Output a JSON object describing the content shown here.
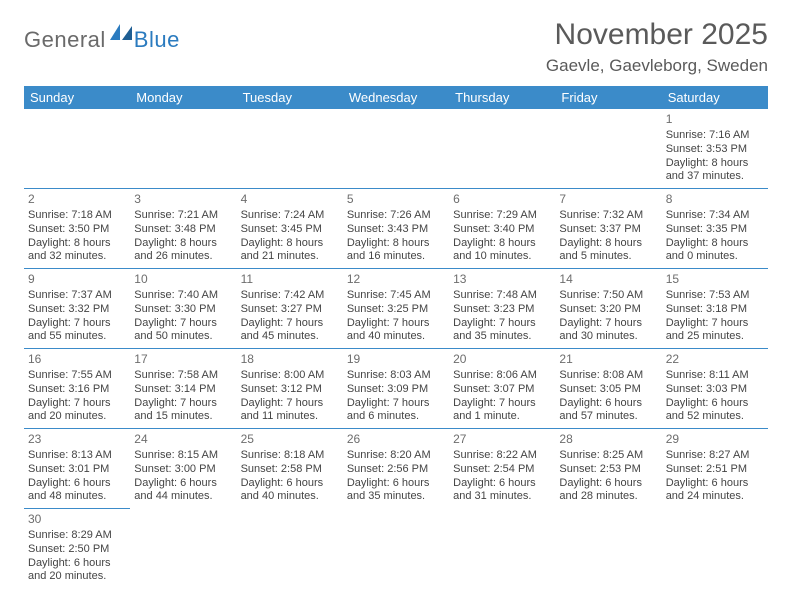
{
  "logo": {
    "general": "General",
    "blue": "Blue"
  },
  "header": {
    "title": "November 2025",
    "location": "Gaevle, Gaevleborg, Sweden"
  },
  "colors": {
    "header_bg": "#3b8bc9",
    "header_fg": "#ffffff",
    "rule": "#3b8bc9",
    "text": "#444444"
  },
  "daynames": [
    "Sunday",
    "Monday",
    "Tuesday",
    "Wednesday",
    "Thursday",
    "Friday",
    "Saturday"
  ],
  "weeks": [
    [
      null,
      null,
      null,
      null,
      null,
      null,
      {
        "n": "1",
        "sr": "Sunrise: 7:16 AM",
        "ss": "Sunset: 3:53 PM",
        "dl": "Daylight: 8 hours and 37 minutes."
      }
    ],
    [
      {
        "n": "2",
        "sr": "Sunrise: 7:18 AM",
        "ss": "Sunset: 3:50 PM",
        "dl": "Daylight: 8 hours and 32 minutes."
      },
      {
        "n": "3",
        "sr": "Sunrise: 7:21 AM",
        "ss": "Sunset: 3:48 PM",
        "dl": "Daylight: 8 hours and 26 minutes."
      },
      {
        "n": "4",
        "sr": "Sunrise: 7:24 AM",
        "ss": "Sunset: 3:45 PM",
        "dl": "Daylight: 8 hours and 21 minutes."
      },
      {
        "n": "5",
        "sr": "Sunrise: 7:26 AM",
        "ss": "Sunset: 3:43 PM",
        "dl": "Daylight: 8 hours and 16 minutes."
      },
      {
        "n": "6",
        "sr": "Sunrise: 7:29 AM",
        "ss": "Sunset: 3:40 PM",
        "dl": "Daylight: 8 hours and 10 minutes."
      },
      {
        "n": "7",
        "sr": "Sunrise: 7:32 AM",
        "ss": "Sunset: 3:37 PM",
        "dl": "Daylight: 8 hours and 5 minutes."
      },
      {
        "n": "8",
        "sr": "Sunrise: 7:34 AM",
        "ss": "Sunset: 3:35 PM",
        "dl": "Daylight: 8 hours and 0 minutes."
      }
    ],
    [
      {
        "n": "9",
        "sr": "Sunrise: 7:37 AM",
        "ss": "Sunset: 3:32 PM",
        "dl": "Daylight: 7 hours and 55 minutes."
      },
      {
        "n": "10",
        "sr": "Sunrise: 7:40 AM",
        "ss": "Sunset: 3:30 PM",
        "dl": "Daylight: 7 hours and 50 minutes."
      },
      {
        "n": "11",
        "sr": "Sunrise: 7:42 AM",
        "ss": "Sunset: 3:27 PM",
        "dl": "Daylight: 7 hours and 45 minutes."
      },
      {
        "n": "12",
        "sr": "Sunrise: 7:45 AM",
        "ss": "Sunset: 3:25 PM",
        "dl": "Daylight: 7 hours and 40 minutes."
      },
      {
        "n": "13",
        "sr": "Sunrise: 7:48 AM",
        "ss": "Sunset: 3:23 PM",
        "dl": "Daylight: 7 hours and 35 minutes."
      },
      {
        "n": "14",
        "sr": "Sunrise: 7:50 AM",
        "ss": "Sunset: 3:20 PM",
        "dl": "Daylight: 7 hours and 30 minutes."
      },
      {
        "n": "15",
        "sr": "Sunrise: 7:53 AM",
        "ss": "Sunset: 3:18 PM",
        "dl": "Daylight: 7 hours and 25 minutes."
      }
    ],
    [
      {
        "n": "16",
        "sr": "Sunrise: 7:55 AM",
        "ss": "Sunset: 3:16 PM",
        "dl": "Daylight: 7 hours and 20 minutes."
      },
      {
        "n": "17",
        "sr": "Sunrise: 7:58 AM",
        "ss": "Sunset: 3:14 PM",
        "dl": "Daylight: 7 hours and 15 minutes."
      },
      {
        "n": "18",
        "sr": "Sunrise: 8:00 AM",
        "ss": "Sunset: 3:12 PM",
        "dl": "Daylight: 7 hours and 11 minutes."
      },
      {
        "n": "19",
        "sr": "Sunrise: 8:03 AM",
        "ss": "Sunset: 3:09 PM",
        "dl": "Daylight: 7 hours and 6 minutes."
      },
      {
        "n": "20",
        "sr": "Sunrise: 8:06 AM",
        "ss": "Sunset: 3:07 PM",
        "dl": "Daylight: 7 hours and 1 minute."
      },
      {
        "n": "21",
        "sr": "Sunrise: 8:08 AM",
        "ss": "Sunset: 3:05 PM",
        "dl": "Daylight: 6 hours and 57 minutes."
      },
      {
        "n": "22",
        "sr": "Sunrise: 8:11 AM",
        "ss": "Sunset: 3:03 PM",
        "dl": "Daylight: 6 hours and 52 minutes."
      }
    ],
    [
      {
        "n": "23",
        "sr": "Sunrise: 8:13 AM",
        "ss": "Sunset: 3:01 PM",
        "dl": "Daylight: 6 hours and 48 minutes."
      },
      {
        "n": "24",
        "sr": "Sunrise: 8:15 AM",
        "ss": "Sunset: 3:00 PM",
        "dl": "Daylight: 6 hours and 44 minutes."
      },
      {
        "n": "25",
        "sr": "Sunrise: 8:18 AM",
        "ss": "Sunset: 2:58 PM",
        "dl": "Daylight: 6 hours and 40 minutes."
      },
      {
        "n": "26",
        "sr": "Sunrise: 8:20 AM",
        "ss": "Sunset: 2:56 PM",
        "dl": "Daylight: 6 hours and 35 minutes."
      },
      {
        "n": "27",
        "sr": "Sunrise: 8:22 AM",
        "ss": "Sunset: 2:54 PM",
        "dl": "Daylight: 6 hours and 31 minutes."
      },
      {
        "n": "28",
        "sr": "Sunrise: 8:25 AM",
        "ss": "Sunset: 2:53 PM",
        "dl": "Daylight: 6 hours and 28 minutes."
      },
      {
        "n": "29",
        "sr": "Sunrise: 8:27 AM",
        "ss": "Sunset: 2:51 PM",
        "dl": "Daylight: 6 hours and 24 minutes."
      }
    ],
    [
      {
        "n": "30",
        "sr": "Sunrise: 8:29 AM",
        "ss": "Sunset: 2:50 PM",
        "dl": "Daylight: 6 hours and 20 minutes."
      },
      null,
      null,
      null,
      null,
      null,
      null
    ]
  ]
}
